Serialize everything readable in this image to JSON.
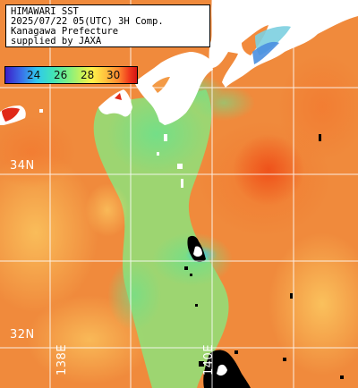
{
  "header": {
    "lines": [
      "HIMAWARI SST",
      "2025/07/22 05(UTC) 3H Comp.",
      "Kanagawa Prefecture",
      "supplied by JAXA"
    ]
  },
  "legend": {
    "ticks": [
      "24",
      "26",
      "28",
      "30"
    ],
    "colors": [
      "#3b1ec8",
      "#30c8ee",
      "#7ff084",
      "#fff24a",
      "#ff8a30",
      "#d41414"
    ]
  },
  "grid": {
    "latitudes": [
      "34N",
      "32N"
    ],
    "longitudes": [
      "138E",
      "140E"
    ]
  },
  "colors": {
    "land": "#ffffff",
    "cloud_mask": "#000000",
    "warm_sea": "#f08a3c",
    "cool_sea": "#7fe07a",
    "grid": "#ffffff"
  }
}
